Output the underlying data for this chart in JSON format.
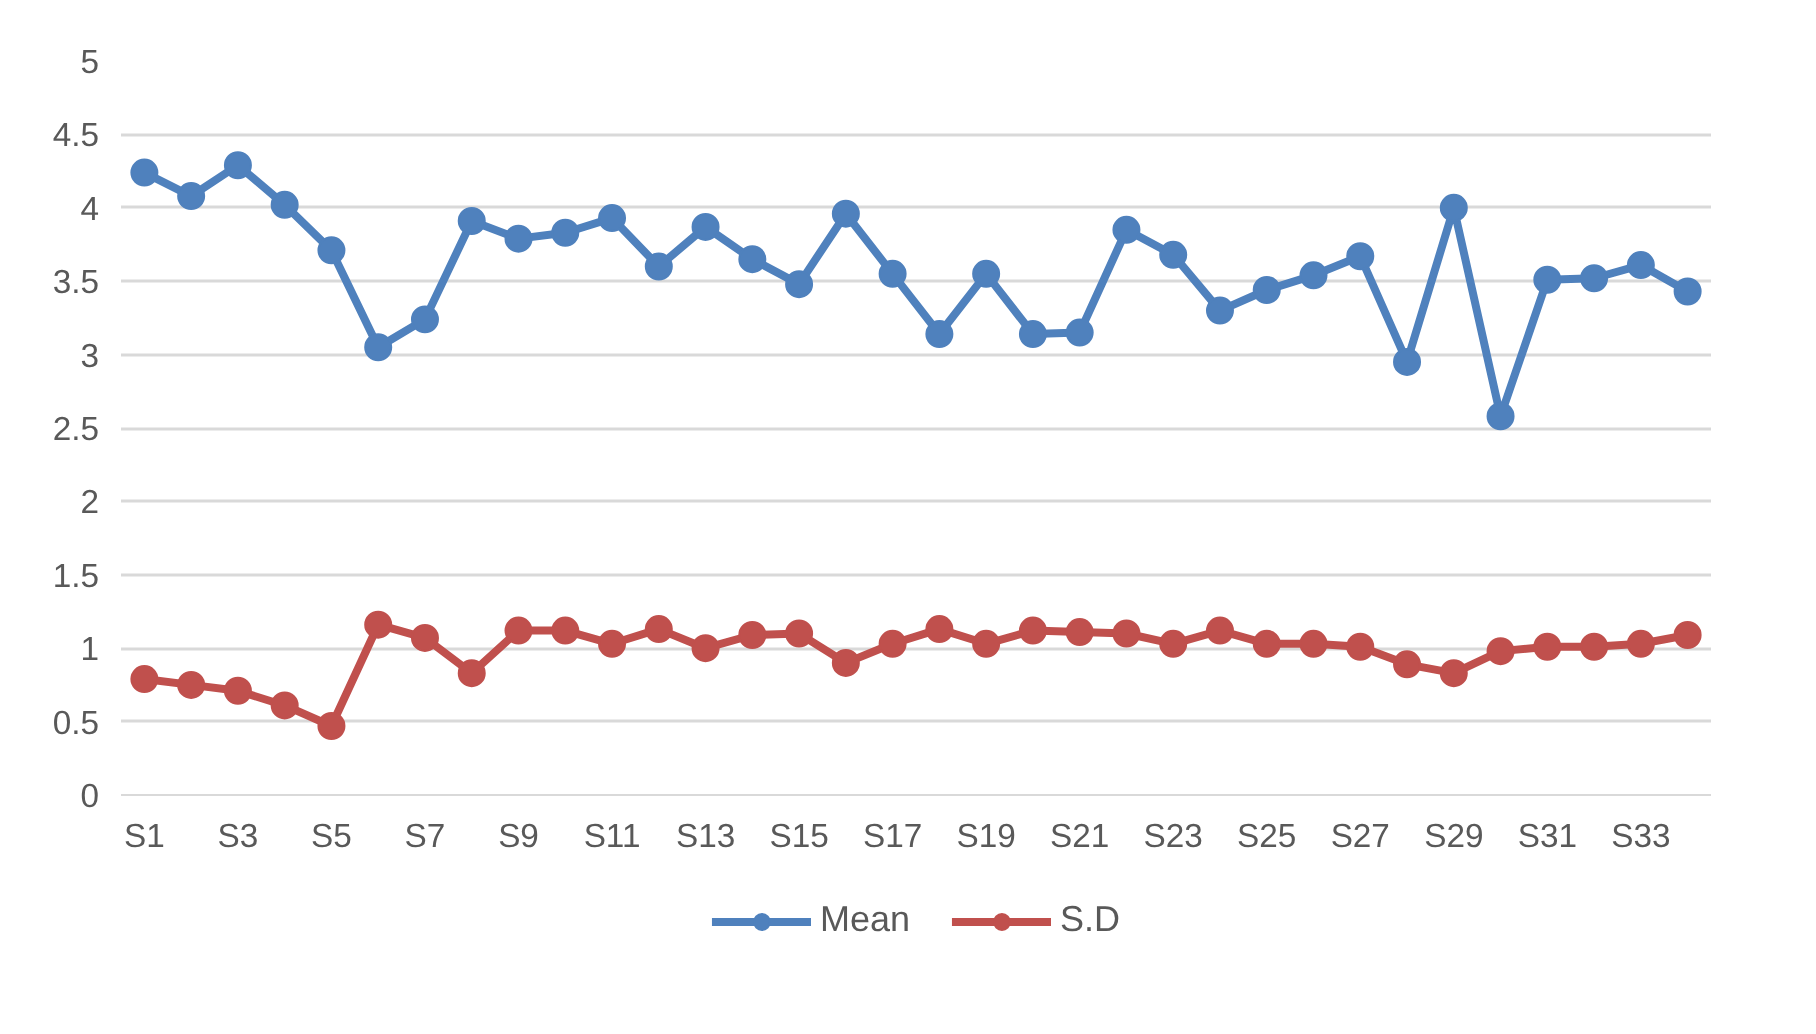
{
  "chart_data": {
    "type": "line",
    "categories": [
      "S1",
      null,
      "S3",
      null,
      "S5",
      null,
      "S7",
      null,
      "S9",
      null,
      "S11",
      null,
      "S13",
      null,
      "S15",
      null,
      "S17",
      null,
      "S19",
      null,
      "S21",
      null,
      "S23",
      null,
      "S25",
      null,
      "S27",
      null,
      "S29",
      null,
      "S31",
      null,
      "S33",
      null
    ],
    "series": [
      {
        "name": "Mean",
        "color": "#4f81bd",
        "values": [
          4.24,
          4.08,
          4.29,
          4.02,
          3.71,
          3.05,
          3.24,
          3.91,
          3.79,
          3.83,
          3.93,
          3.6,
          3.87,
          3.65,
          3.48,
          3.96,
          3.55,
          3.14,
          3.55,
          3.14,
          3.15,
          3.85,
          3.68,
          3.3,
          3.44,
          3.54,
          3.67,
          2.95,
          4.0,
          2.58,
          3.51,
          3.52,
          3.61,
          3.43
        ]
      },
      {
        "name": "S.D",
        "color": "#c0504d",
        "values": [
          0.79,
          0.75,
          0.71,
          0.61,
          0.47,
          1.16,
          1.07,
          0.83,
          1.12,
          1.12,
          1.03,
          1.13,
          1.0,
          1.09,
          1.1,
          0.9,
          1.03,
          1.13,
          1.03,
          1.12,
          1.11,
          1.1,
          1.03,
          1.12,
          1.03,
          1.03,
          1.01,
          0.89,
          0.83,
          0.98,
          1.01,
          1.01,
          1.03,
          1.09
        ]
      }
    ],
    "ylim": [
      0,
      5
    ],
    "yticks": [
      0,
      0.5,
      1,
      1.5,
      2,
      2.5,
      3,
      3.5,
      4,
      4.5,
      5
    ],
    "grid": "y",
    "legend": "bottom",
    "marker": "circle",
    "line_style": "solid"
  }
}
